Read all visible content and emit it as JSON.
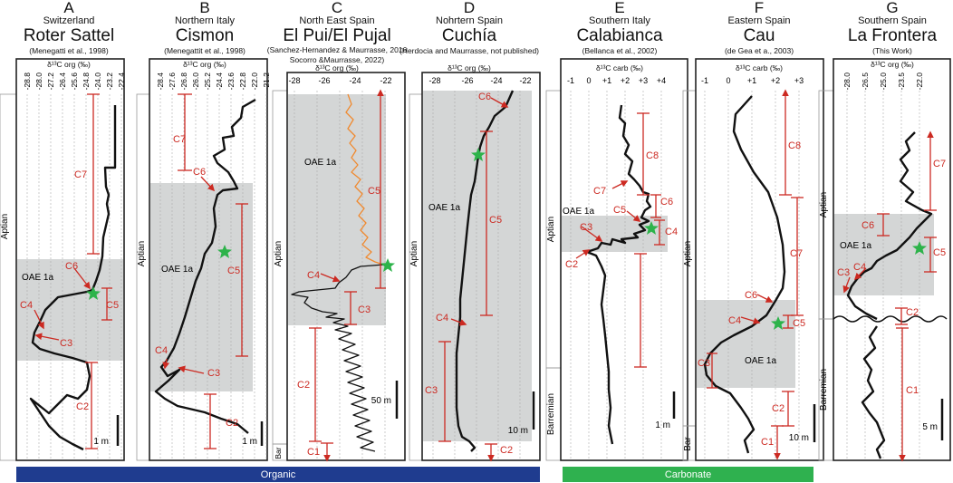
{
  "sections": [
    {
      "letter": "A",
      "region": "Switzerland",
      "name": "Roter Sattel",
      "ref": "(Menegatti et al., 1998)",
      "axis_label": "δ¹³C org (‰)",
      "ticks": [
        "-28.8",
        "-28.0",
        "-27.2",
        "-26.4",
        "-25.6",
        "-24.8",
        "-24.0",
        "-23.2",
        "-22.4"
      ],
      "stage": "Aptian",
      "oae": "OAE 1a",
      "segments": [
        "C7",
        "C6",
        "C5",
        "C4",
        "C3",
        "C2"
      ],
      "scale": "1 m"
    },
    {
      "letter": "B",
      "region": "Northern Italy",
      "name": "Cismon",
      "ref": "(Menegattit et al., 1998)",
      "axis_label": "δ¹³C org (‰)",
      "ticks": [
        "-28.4",
        "-27.6",
        "-26.8",
        "-26.0",
        "-25.2",
        "-24.4",
        "-23.6",
        "-22.8",
        "-22.0",
        "-21.2"
      ],
      "stage": "Aptian",
      "oae": "OAE 1a",
      "segments": [
        "C7",
        "C6",
        "C5",
        "C4",
        "C3",
        "C2"
      ],
      "scale": "1 m"
    },
    {
      "letter": "C",
      "region": "North East Spain",
      "name": "El Pui/El Pujal",
      "ref": "(Sanchez-Hernandez & Maurrasse, 2016",
      "ref2": "Socorro &Maurrasse, 2022)",
      "axis_label": "δ¹³C org (‰)",
      "ticks": [
        "-28",
        "-26",
        "-24",
        "-22"
      ],
      "stage": "Aptian",
      "stage2": "Bar",
      "oae": "OAE 1a",
      "segments": [
        "C5",
        "C4",
        "C3",
        "C2",
        "C1"
      ],
      "scale": "50 m"
    },
    {
      "letter": "D",
      "region": "Nohrtern Spain",
      "name": "Cuchía",
      "ref": "(Herdocia and Maurrasse, not published)",
      "axis_label": "δ¹³C org (‰)",
      "ticks": [
        "-28",
        "-26",
        "-24",
        "-22"
      ],
      "stage": "Aptian",
      "oae": "OAE 1a",
      "segments": [
        "C6",
        "C5",
        "C4",
        "C3",
        "C2"
      ],
      "scale": "10 m"
    },
    {
      "letter": "E",
      "region": "Southern Italy",
      "name": "Calabianca",
      "ref": "(Bellanca et al., 2002)",
      "axis_label": "δ¹³C carb (‰)",
      "ticks": [
        "-1",
        "0",
        "+1",
        "+2",
        "+3",
        "+4"
      ],
      "stage": "Aptian",
      "stage2": "Barremian",
      "oae": "OAE 1a",
      "segments": [
        "C8",
        "C7",
        "C6",
        "C5",
        "C4",
        "C3",
        "C2"
      ],
      "scale": "1 m"
    },
    {
      "letter": "F",
      "region": "Eastern Spain",
      "name": "Cau",
      "ref": "(de Gea et a., 2003)",
      "axis_label": "δ¹³C carb (‰)",
      "ticks": [
        "-1",
        "0",
        "+1",
        "+2",
        "+3"
      ],
      "stage": "Aptian",
      "stage2": "Bar",
      "oae": "OAE 1a",
      "segments": [
        "C8",
        "C7",
        "C6",
        "C5",
        "C4",
        "C3",
        "C2",
        "C1"
      ],
      "scale": "10 m"
    },
    {
      "letter": "G",
      "region": "Southern Spain",
      "name": "La Frontera",
      "ref": "(This Work)",
      "axis_label": "δ¹³C org (‰)",
      "ticks": [
        "-28.0",
        "-26.5",
        "-25.0",
        "-23.5",
        "-22.0"
      ],
      "stage": "Aptian",
      "stage2": "Barremian",
      "oae": "OAE 1a",
      "segments": [
        "C7",
        "C6",
        "C5",
        "C4",
        "C3",
        "C2",
        "C1"
      ],
      "scale": "5 m"
    }
  ],
  "bands": {
    "organic": "Organic",
    "carbonate": "Carbonate"
  },
  "colors": {
    "oae_shade": "#d4d6d6",
    "segment_red": "#cc2a22",
    "orange_curve": "#f08a30",
    "star_green": "#2db34a",
    "organic_band": "#1f3c8f",
    "carbonate_band": "#2fb14f"
  }
}
